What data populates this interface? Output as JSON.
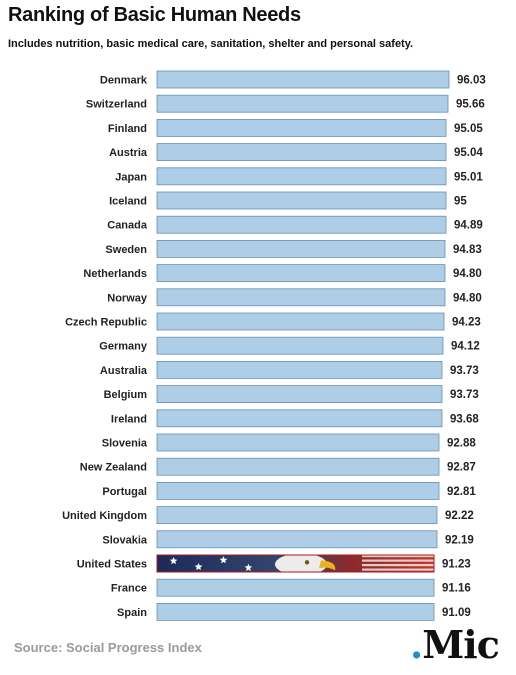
{
  "header": {
    "title": "Ranking of Basic Human Needs",
    "subtitle": "Includes nutrition, basic medical care, sanitation, shelter and personal safety."
  },
  "footer": {
    "source": "Source: Social Progress Index",
    "logo_dot": ".",
    "logo_text": "Mic"
  },
  "colors": {
    "bar_fill": "#aecde6",
    "bar_stroke": "#6b8fae",
    "highlight_stroke": "#b01919",
    "logo_accent": "#1a8fd6"
  },
  "chart_data": {
    "type": "bar",
    "orientation": "horizontal",
    "title": "Ranking of Basic Human Needs",
    "subtitle": "Includes nutrition, basic medical care, sanitation, shelter and personal safety.",
    "categories": [
      "Denmark",
      "Switzerland",
      "Finland",
      "Austria",
      "Japan",
      "Iceland",
      "Canada",
      "Sweden",
      "Netherlands",
      "Norway",
      "Czech Republic",
      "Germany",
      "Australia",
      "Belgium",
      "Ireland",
      "Slovenia",
      "New Zealand",
      "Portugal",
      "United Kingdom",
      "Slovakia",
      "United States",
      "France",
      "Spain"
    ],
    "values": [
      96.03,
      95.66,
      95.05,
      95.04,
      95.01,
      95,
      94.89,
      94.83,
      94.8,
      94.8,
      94.23,
      94.12,
      93.73,
      93.73,
      93.68,
      92.88,
      92.87,
      92.81,
      92.22,
      92.19,
      91.23,
      91.16,
      91.09
    ],
    "value_labels": [
      "96.03",
      "95.66",
      "95.05",
      "95.04",
      "95.01",
      "95",
      "94.89",
      "94.83",
      "94.80",
      "94.80",
      "94.23",
      "94.12",
      "93.73",
      "93.73",
      "93.68",
      "92.88",
      "92.87",
      "92.81",
      "92.22",
      "92.19",
      "91.23",
      "91.16",
      "91.09"
    ],
    "highlight": "United States",
    "grid": false,
    "legend": "none"
  }
}
